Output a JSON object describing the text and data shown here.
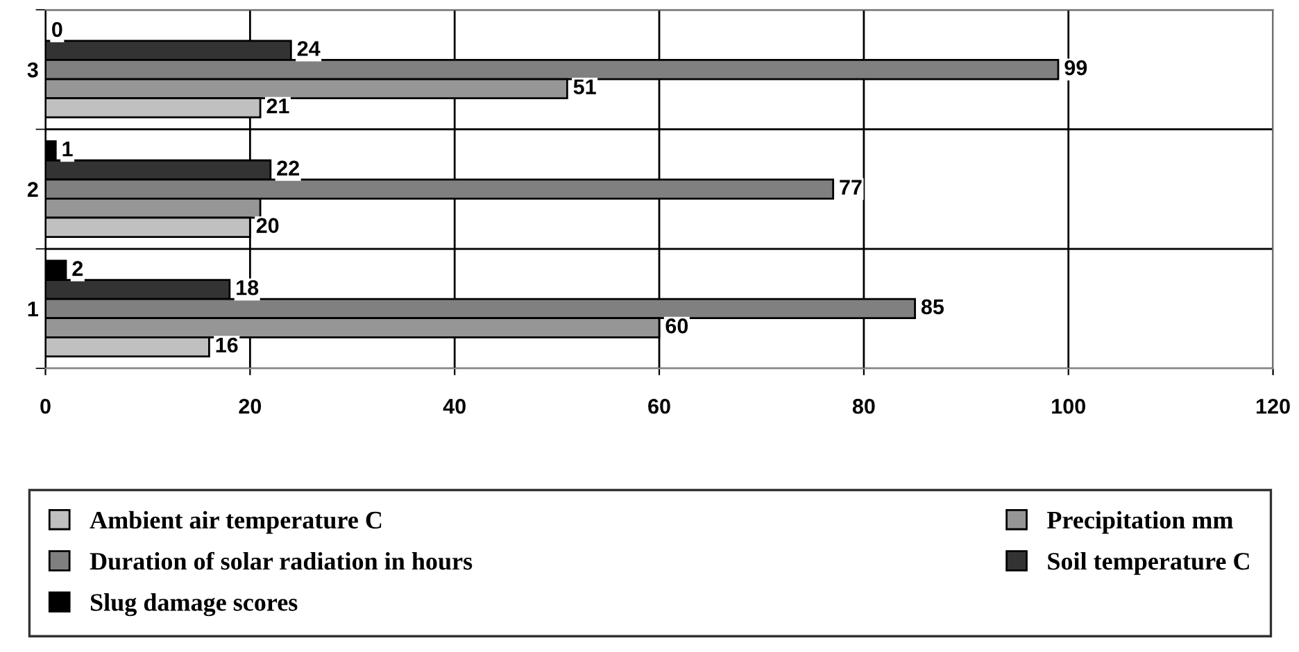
{
  "chart_data": {
    "type": "bar",
    "orientation": "horizontal",
    "categories": [
      "3",
      "2",
      "1"
    ],
    "series": [
      {
        "name": "Slug damage scores",
        "color": "#000000",
        "values": [
          0,
          1,
          2
        ],
        "value_labels": [
          "0",
          "1",
          "2"
        ]
      },
      {
        "name": "Soil temperature C",
        "color": "#333333",
        "values": [
          24,
          22,
          18
        ],
        "value_labels": [
          "24",
          "22",
          "18"
        ]
      },
      {
        "name": "Duration of solar radiation in hours",
        "color": "#808080",
        "values": [
          99,
          77,
          85
        ],
        "value_labels": [
          "99",
          "77",
          "85"
        ]
      },
      {
        "name": "Precipitation mm",
        "color": "#969696",
        "values": [
          51,
          21,
          60
        ],
        "value_labels": [
          "51",
          null,
          "60"
        ]
      },
      {
        "name": "Ambient air temperature C",
        "color": "#c0c0c0",
        "values": [
          21,
          20,
          16
        ],
        "value_labels": [
          "21",
          "20",
          "16"
        ]
      }
    ],
    "xlim": [
      0,
      120
    ],
    "xticks": [
      0,
      20,
      40,
      60,
      80,
      100,
      120
    ],
    "grid": true,
    "legend": "bottom"
  }
}
